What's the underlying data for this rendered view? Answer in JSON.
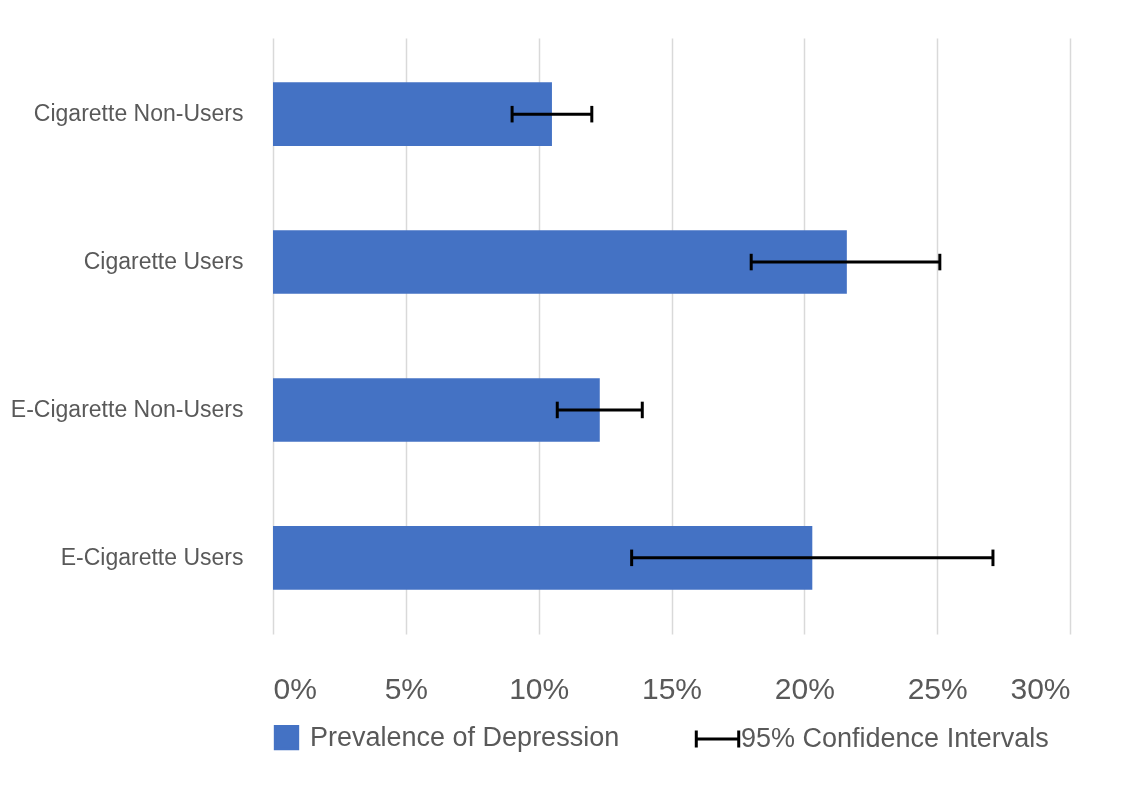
{
  "chart_data": {
    "type": "bar",
    "orientation": "horizontal",
    "categories": [
      "Cigarette Non-Users",
      "Cigarette Users",
      "E-Cigarette Non-Users",
      "E-Cigarette Users"
    ],
    "series": [
      {
        "name": "Prevalence of Depression",
        "color": "#4472c4",
        "values": [
          10.5,
          21.6,
          12.3,
          20.3
        ],
        "errors": [
          [
            9.0,
            12.0
          ],
          [
            18.0,
            25.1
          ],
          [
            10.7,
            13.9
          ],
          [
            13.5,
            27.1
          ]
        ]
      }
    ],
    "annotations": [
      "95% Confidence Intervals"
    ],
    "xlim": [
      0,
      30
    ],
    "xticks": [
      {
        "value": 0,
        "label": "0%"
      },
      {
        "value": 5,
        "label": "5%"
      },
      {
        "value": 10,
        "label": "10%"
      },
      {
        "value": 15,
        "label": "15%"
      },
      {
        "value": 20,
        "label": "20%"
      },
      {
        "value": 25,
        "label": "25%"
      },
      {
        "value": 30,
        "label": "30%"
      }
    ],
    "grid": "x",
    "legend": "bottom"
  }
}
